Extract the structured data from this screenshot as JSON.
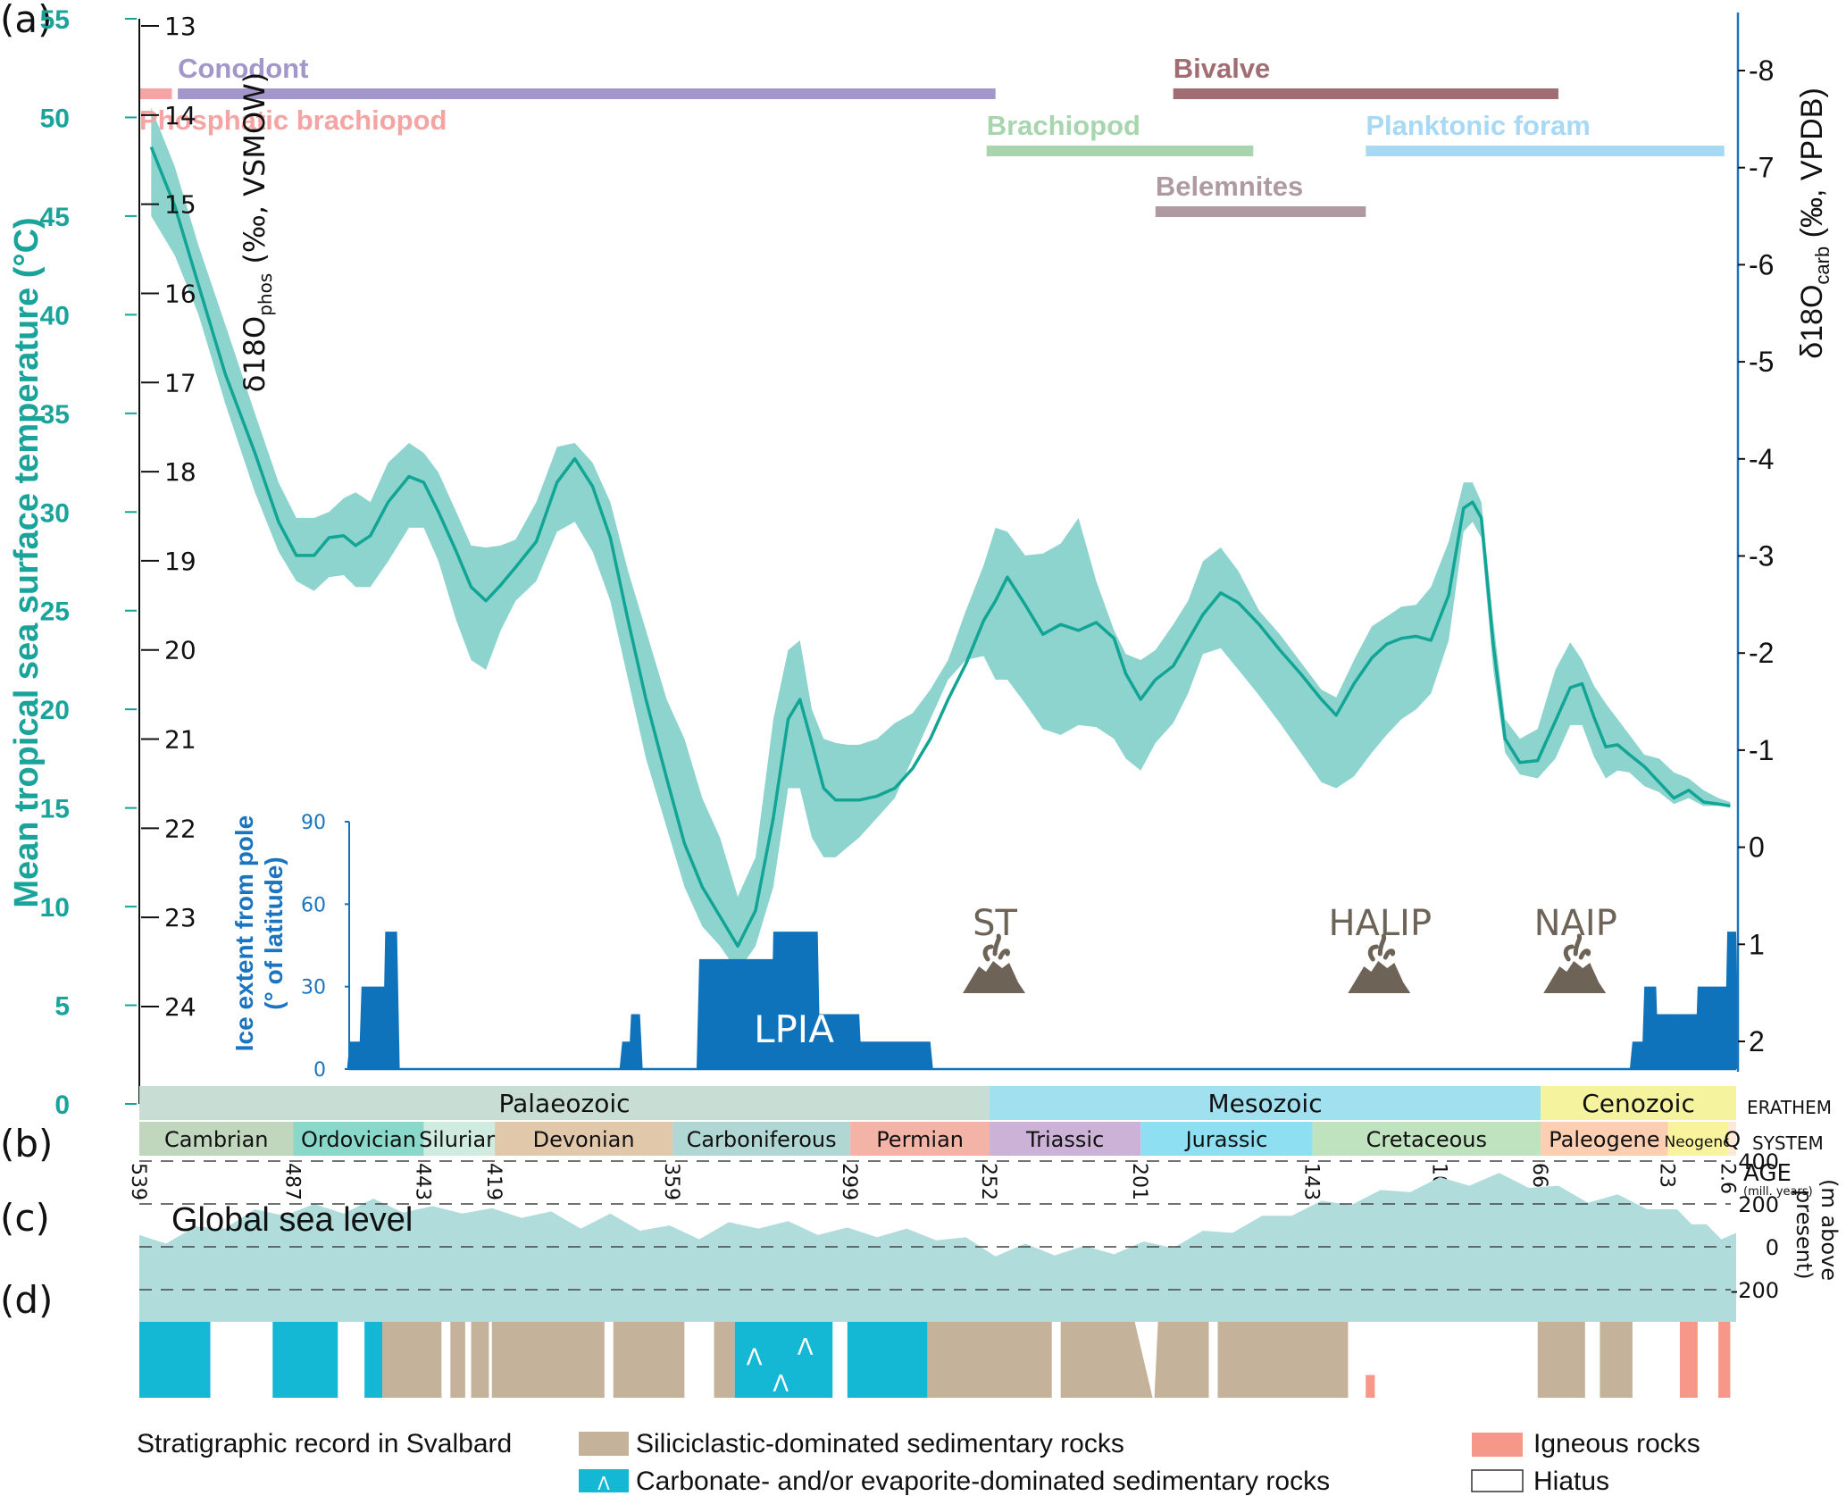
{
  "panel_labels": {
    "a": "(a)",
    "b": "(b)",
    "c": "(c)",
    "d": "(d)"
  },
  "colors": {
    "temp_line": "#12a596",
    "temp_band": "#8dd4ce",
    "ice": "#0f73bb",
    "right_axis": "#1a74bf",
    "sea_level": "#b0dcdc",
    "siliciclastic": "#c4b39a",
    "carbonate": "#14b8d4",
    "igneous": "#f7978a",
    "volcano": "#6e6357"
  },
  "chart_data": [
    {
      "id": "a",
      "type": "area",
      "title": "",
      "xlabel": "AGE (mill. years)",
      "xlim": [
        539,
        0
      ],
      "left_axis_temp": {
        "label": "Mean tropical sea surface temperature (°C)",
        "ylim": [
          0,
          55
        ],
        "ticks": [
          0,
          5,
          10,
          15,
          20,
          25,
          30,
          35,
          40,
          45,
          50,
          55
        ]
      },
      "left_axis_phos": {
        "label_main": "δ18O",
        "label_sub": "phos",
        "label_tail": " (‰, VSMOW)",
        "ylim": [
          13,
          24
        ],
        "ticks": [
          "13",
          "14",
          "15",
          "16",
          "17",
          "18",
          "19",
          "20",
          "21",
          "22",
          "23",
          "24"
        ]
      },
      "right_axis_carb": {
        "label_main": "δ18O",
        "label_sub": "carb",
        "label_tail": " (‰, VPDB)",
        "ylim": [
          -8,
          2
        ],
        "ticks": [
          "-8",
          "-7",
          "-6",
          "-5",
          "-4",
          "-3",
          "-2",
          "-1",
          "0",
          "1",
          "2"
        ]
      },
      "series": [
        {
          "name": "Mean tropical SST",
          "x": [
            535,
            527,
            519,
            510,
            500,
            492,
            486,
            480,
            475,
            470,
            466,
            461,
            455,
            448,
            443,
            438,
            432,
            427,
            422,
            417,
            412,
            405,
            398,
            392,
            386,
            380,
            374,
            368,
            361,
            355,
            349,
            343,
            337,
            331,
            325,
            320,
            316,
            312,
            308,
            304,
            300,
            296,
            290,
            284,
            278,
            272,
            266,
            260,
            254,
            250,
            246,
            240,
            234,
            228,
            222,
            216,
            210,
            206,
            201,
            196,
            190,
            185,
            180,
            174,
            168,
            161,
            154,
            147,
            140,
            135,
            129,
            123,
            118,
            113,
            108,
            103,
            97,
            92,
            89,
            86,
            82,
            78,
            73,
            67,
            61,
            56,
            52,
            48,
            44,
            40,
            36,
            31,
            26,
            21,
            16,
            11,
            6,
            2
          ],
          "values": [
            48.5,
            45.5,
            41.5,
            37,
            33,
            29.5,
            27.8,
            27.8,
            28.7,
            28.8,
            28.3,
            28.8,
            30.5,
            31.8,
            31.5,
            30,
            28,
            26.2,
            25.5,
            26.3,
            27.2,
            28.5,
            31.5,
            32.7,
            31.3,
            28.7,
            24.5,
            20.5,
            16.5,
            13.2,
            11,
            9.5,
            8,
            9.8,
            14.5,
            19.5,
            20.5,
            18.3,
            16,
            15.4,
            15.4,
            15.4,
            15.6,
            16,
            17,
            18.5,
            20.5,
            22.3,
            24.5,
            25.5,
            26.7,
            25.3,
            23.8,
            24.3,
            24,
            24.4,
            23.6,
            21.8,
            20.5,
            21.5,
            22.2,
            23.5,
            24.8,
            25.9,
            25.4,
            24.3,
            23,
            21.8,
            20.5,
            19.7,
            21.3,
            22.6,
            23.3,
            23.6,
            23.7,
            23.5,
            25.8,
            30.2,
            30.5,
            29.7,
            23.3,
            18.5,
            17.3,
            17.4,
            19.4,
            21.1,
            21.3,
            19.6,
            18.1,
            18.2,
            17.7,
            17.1,
            16.3,
            15.5,
            15.9,
            15.3,
            15.2,
            15.1
          ],
          "lower": [
            45,
            43,
            40,
            35.5,
            31,
            28,
            26.5,
            26,
            26.7,
            26.8,
            26.2,
            26.2,
            27.5,
            29.2,
            29.2,
            27.5,
            24.5,
            22.5,
            22,
            24,
            25.5,
            26.5,
            29,
            29.5,
            28,
            25.5,
            21.5,
            17.5,
            14,
            11,
            9,
            8,
            6.7,
            8,
            11,
            16,
            16,
            13.5,
            12.5,
            12.5,
            13,
            13.5,
            14.5,
            15.5,
            17.5,
            19.5,
            21.5,
            22.5,
            22.7,
            21.5,
            21.5,
            20.3,
            19,
            18.7,
            19.2,
            19.1,
            18.5,
            17.5,
            16.9,
            18.3,
            19.3,
            20.8,
            22.8,
            23.1,
            22,
            20.7,
            19.3,
            17.8,
            16.3,
            16,
            16.6,
            17.8,
            18.7,
            19.5,
            20,
            20.8,
            23.5,
            29,
            29.5,
            28.7,
            22,
            17.8,
            16.7,
            16.5,
            17.5,
            19.2,
            19.2,
            17.6,
            16.5,
            16.9,
            16.8,
            16.1,
            15.8,
            15.2,
            15.5,
            15.1,
            15.1,
            15.1
          ],
          "upper": [
            50.5,
            47.5,
            43.5,
            39.5,
            35,
            31.5,
            29.7,
            29.7,
            30,
            30.7,
            31,
            30.5,
            32.5,
            33.5,
            33,
            32,
            30,
            28.3,
            28.2,
            28.3,
            28.6,
            30.5,
            33.3,
            33.5,
            32.5,
            30.5,
            27,
            24,
            20.5,
            18.5,
            15.5,
            13.5,
            10.5,
            12.5,
            19.5,
            23,
            23.5,
            20,
            18.5,
            18.3,
            18.2,
            18.2,
            18.5,
            19.3,
            19.8,
            21,
            22.5,
            25,
            27.3,
            29.2,
            29,
            27.8,
            27.9,
            28.4,
            29.7,
            26.5,
            24,
            22.8,
            22.5,
            23,
            24.3,
            25.5,
            27.5,
            28.2,
            27,
            25,
            23.8,
            22.4,
            21,
            20.6,
            22.5,
            24.2,
            24.7,
            25.2,
            25.3,
            26.2,
            28.5,
            31.5,
            31.5,
            30.5,
            24.5,
            19.5,
            18.5,
            19,
            22,
            23.4,
            22.5,
            21.2,
            20.3,
            19.5,
            18.7,
            17.7,
            17.5,
            16.8,
            16.5,
            15.9,
            15.5,
            15.3
          ]
        },
        {
          "name": "Ice extent from pole (° of latitude)",
          "axis": {
            "label_line1": "Ice extent from pole",
            "label_line2": "(° of latitude)",
            "ylim": [
              0,
              90
            ],
            "ticks": [
              "0",
              "30",
              "60",
              "90"
            ]
          },
          "x": [
            534,
            532,
            531,
            529,
            527,
            522,
            521,
            519,
            517,
            515,
            513,
            512,
            508,
            506,
            505,
            503,
            500,
            498,
            497,
            495,
            493,
            488,
            486
          ],
          "comment_only_shape": "stepped series below",
          "steps": [
            {
              "from": 468,
              "to": 464,
              "value": 10
            },
            {
              "from": 464,
              "to": 456,
              "value": 30
            },
            {
              "from": 456,
              "to": 452,
              "value": 50
            },
            {
              "from": 376,
              "to": 373,
              "value": 10
            },
            {
              "from": 373,
              "to": 370,
              "value": 20
            },
            {
              "from": 350,
              "to": 339,
              "value": 40
            },
            {
              "from": 339,
              "to": 325,
              "value": 40
            },
            {
              "from": 325,
              "to": 310,
              "value": 50
            },
            {
              "from": 310,
              "to": 296,
              "value": 20
            },
            {
              "from": 296,
              "to": 283,
              "value": 10
            },
            {
              "from": 283,
              "to": 272,
              "value": 10
            },
            {
              "from": 35,
              "to": 31,
              "value": 10
            },
            {
              "from": 31,
              "to": 27,
              "value": 30
            },
            {
              "from": 27,
              "to": 21,
              "value": 20
            },
            {
              "from": 21,
              "to": 13,
              "value": 20
            },
            {
              "from": 13,
              "to": 3,
              "value": 30
            },
            {
              "from": 3,
              "to": 0,
              "value": 50
            }
          ]
        }
      ],
      "proxy_ranges": [
        {
          "name": "Phosphatic brachiopod",
          "from": 539,
          "to": 528,
          "color": "#f4a4a2",
          "row": 1
        },
        {
          "name": "Conodont",
          "from": 526,
          "to": 250,
          "color": "#a296ca",
          "row": 1
        },
        {
          "name": "Bivalve",
          "from": 190,
          "to": 60,
          "color": "#a06d73",
          "row": 1
        },
        {
          "name": "Brachiopod",
          "from": 253,
          "to": 163,
          "color": "#a7d6ae",
          "row": 2
        },
        {
          "name": "Planktonic foram",
          "from": 125,
          "to": 4,
          "color": "#a7d9f5",
          "row": 2
        },
        {
          "name": "Belemnites",
          "from": 196,
          "to": 125,
          "color": "#b09aa2",
          "row": 3
        }
      ],
      "annotations": [
        {
          "text": "LPIA",
          "x": 312,
          "type": "ice-age"
        },
        {
          "text": "ST",
          "x": 252,
          "type": "volcano"
        },
        {
          "text": "HALIP",
          "x": 122,
          "type": "volcano"
        },
        {
          "text": "NAIP",
          "x": 56,
          "type": "volcano"
        }
      ]
    },
    {
      "id": "b",
      "type": "table",
      "erathems": [
        {
          "name": "Palaeozoic",
          "from": 539,
          "to": 252,
          "color": "#c8ded4"
        },
        {
          "name": "Mesozoic",
          "from": 252,
          "to": 66,
          "color": "#a0e0ef"
        },
        {
          "name": "Cenozoic",
          "from": 66,
          "to": 0,
          "color": "#f6f39e"
        }
      ],
      "systems": [
        {
          "name": "Cambrian",
          "from": 539,
          "to": 487,
          "color": "#c0d6bd"
        },
        {
          "name": "Ordovician",
          "from": 487,
          "to": 443,
          "color": "#89d8ca"
        },
        {
          "name": "Silurian",
          "from": 443,
          "to": 419,
          "color": "#d0ece1"
        },
        {
          "name": "Devonian",
          "from": 419,
          "to": 359,
          "color": "#e2c8ab"
        },
        {
          "name": "Carboniferous",
          "from": 359,
          "to": 299,
          "color": "#b1d7d5"
        },
        {
          "name": "Permian",
          "from": 299,
          "to": 252,
          "color": "#f3b3a7"
        },
        {
          "name": "Triassic",
          "from": 252,
          "to": 201,
          "color": "#cdb2d8"
        },
        {
          "name": "Jurassic",
          "from": 201,
          "to": 143,
          "color": "#8ddff1"
        },
        {
          "name": "Cretaceous",
          "from": 143,
          "to": 66,
          "color": "#bfe3be"
        },
        {
          "name": "Paleogene",
          "from": 66,
          "to": 23,
          "color": "#fccfb2"
        },
        {
          "name": "Neogene",
          "from": 23,
          "to": 2.6,
          "color": "#f8f39c"
        },
        {
          "name": "Q",
          "from": 2.6,
          "to": 0,
          "color": "#fde9d7"
        }
      ],
      "ages": [
        "539",
        "487",
        "443",
        "419",
        "359",
        "299",
        "252",
        "201",
        "143",
        "100",
        "66",
        "23",
        "2.6"
      ],
      "age_values": [
        539,
        487,
        443,
        419,
        359,
        299,
        252,
        201,
        143,
        100,
        66,
        23,
        2.6
      ],
      "row_labels": {
        "erathem": "ERATHEM",
        "system": "SYSTEM",
        "age": "AGE",
        "age_unit": "(mill. years)"
      }
    },
    {
      "id": "c",
      "type": "area",
      "title": "Global sea level",
      "ylabel_line1": "(m above",
      "ylabel_line2": "present)",
      "ylim": [
        -300,
        450
      ],
      "ticks": [
        "400",
        "200",
        "0",
        "-200"
      ],
      "tick_values": [
        400,
        200,
        0,
        -200
      ],
      "x": [
        539,
        530,
        520,
        510,
        500,
        490,
        480,
        470,
        460,
        450,
        440,
        430,
        420,
        410,
        400,
        390,
        380,
        370,
        360,
        350,
        340,
        330,
        320,
        310,
        300,
        290,
        280,
        270,
        260,
        250,
        240,
        230,
        220,
        210,
        200,
        190,
        180,
        170,
        160,
        150,
        140,
        130,
        120,
        110,
        100,
        90,
        80,
        70,
        60,
        50,
        40,
        30,
        20,
        15,
        10,
        5,
        0
      ],
      "values": [
        30,
        40,
        70,
        110,
        150,
        170,
        175,
        180,
        200,
        185,
        165,
        180,
        155,
        160,
        140,
        110,
        130,
        100,
        75,
        60,
        90,
        110,
        95,
        80,
        65,
        70,
        60,
        55,
        20,
        -20,
        -10,
        -15,
        -20,
        -10,
        0,
        20,
        50,
        90,
        120,
        170,
        190,
        220,
        240,
        280,
        300,
        310,
        320,
        300,
        260,
        230,
        220,
        200,
        150,
        130,
        80,
        60,
        40
      ]
    },
    {
      "id": "d",
      "type": "table",
      "title": "Stratigraphic record in Svalbard",
      "legend": [
        {
          "key": "siliciclastic",
          "label": "Siliciclastic-dominated sedimentary rocks"
        },
        {
          "key": "carbonate",
          "label": "Carbonate- and/or evaporite-dominated sedimentary rocks",
          "symbol": "Λ"
        },
        {
          "key": "igneous",
          "label": "Igneous rocks"
        },
        {
          "key": "hiatus",
          "label": "Hiatus"
        }
      ],
      "units": [
        {
          "type": "carbonate",
          "from": 539,
          "to": 515
        },
        {
          "type": "hiatus",
          "from": 515,
          "to": 494
        },
        {
          "type": "carbonate",
          "from": 494,
          "to": 472
        },
        {
          "type": "carbonate",
          "from": 463,
          "to": 457
        },
        {
          "type": "siliciclastic",
          "from": 457,
          "to": 437
        },
        {
          "type": "siliciclastic",
          "from": 434,
          "to": 429
        },
        {
          "type": "siliciclastic",
          "from": 427,
          "to": 421
        },
        {
          "type": "siliciclastic",
          "from": 420,
          "to": 382
        },
        {
          "type": "siliciclastic",
          "from": 379,
          "to": 355
        },
        {
          "type": "siliciclastic",
          "from": 345,
          "to": 338
        },
        {
          "type": "carbonate",
          "from": 338,
          "to": 305,
          "symbols": 3
        },
        {
          "type": "carbonate",
          "from": 300,
          "to": 273
        },
        {
          "type": "siliciclastic",
          "from": 273,
          "to": 231
        },
        {
          "type": "siliciclastic-wedge",
          "from": 228,
          "to": 178
        },
        {
          "type": "siliciclastic",
          "from": 175,
          "to": 131
        },
        {
          "type": "igneous",
          "from": 125,
          "to": 122,
          "partial": true
        },
        {
          "type": "siliciclastic",
          "from": 67,
          "to": 51
        },
        {
          "type": "siliciclastic",
          "from": 46,
          "to": 35
        },
        {
          "type": "igneous",
          "from": 19,
          "to": 13
        },
        {
          "type": "igneous",
          "from": 6,
          "to": 2
        }
      ]
    }
  ]
}
